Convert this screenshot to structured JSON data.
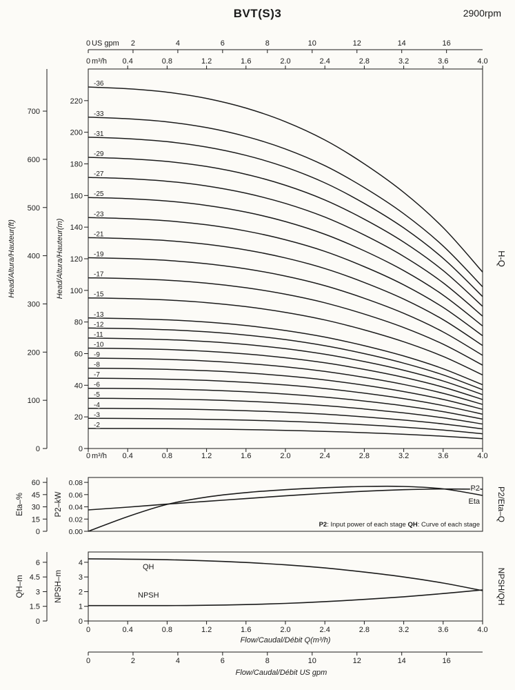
{
  "title": "BVT(S)3",
  "rpm": "2900rpm",
  "chart_data": {
    "type": "line",
    "flow_m3h": [
      0,
      0.4,
      0.8,
      1.2,
      1.6,
      2.0,
      2.4,
      2.8,
      3.2,
      3.6,
      4.0
    ],
    "x_axis_m3h": {
      "unit": "m³/h",
      "zero_label": "0",
      "tick_values": [
        0.4,
        0.8,
        1.2,
        1.6,
        2.0,
        2.4,
        2.8,
        3.2,
        3.6,
        4.0
      ],
      "tick_labels": [
        "0.4",
        "0.8",
        "1.2",
        "1.6",
        "2.0",
        "2.4",
        "2.8",
        "3.2",
        "3.6",
        "4.0"
      ],
      "max": 4.0
    },
    "x_axis_usgpm": {
      "unit": "US gpm",
      "zero_label": "0",
      "tick_values": [
        2,
        4,
        6,
        8,
        10,
        12,
        14,
        16
      ],
      "tick_labels": [
        "2",
        "4",
        "6",
        "8",
        "10",
        "12",
        "14",
        "16"
      ],
      "gpm_per_m3h": 4.4029
    },
    "hq": {
      "right_label": "H-Q",
      "axis_m": {
        "title": "Head/Altura/Hauteur(m)",
        "ticks": [
          0,
          20,
          40,
          60,
          80,
          100,
          120,
          140,
          160,
          180,
          200,
          220
        ],
        "max": 240
      },
      "axis_ft": {
        "title": "Head/Altura/Hauteur(ft)",
        "ticks": [
          0,
          100,
          200,
          300,
          400,
          500,
          600,
          700
        ],
        "m_per_ft": 0.3048
      },
      "per_stage_head_m": [
        6.35,
        6.32,
        6.26,
        6.15,
        5.98,
        5.74,
        5.42,
        5.0,
        4.5,
        3.88,
        3.1
      ],
      "stages": [
        36,
        33,
        31,
        29,
        27,
        25,
        23,
        21,
        19,
        17,
        15,
        13,
        12,
        11,
        10,
        9,
        8,
        7,
        6,
        5,
        4,
        3,
        2
      ],
      "stage_labels": [
        "-36",
        "-33",
        "-31",
        "-29",
        "-27",
        "-25",
        "-23",
        "-21",
        "-19",
        "-17",
        "-15",
        "-13",
        "-12",
        "-11",
        "-10",
        "-9",
        "-8",
        "-7",
        "-6",
        "-5",
        "-4",
        "-3",
        "-2"
      ]
    },
    "p2eta": {
      "right_label": "P2/Eta–Q",
      "axis_eta": {
        "title": "Eta–%",
        "ticks": [
          0,
          15,
          30,
          45,
          60
        ],
        "max": 66
      },
      "axis_p2": {
        "title": "P2–kW",
        "tick_values": [
          0,
          0.02,
          0.04,
          0.06,
          0.08
        ],
        "tick_labels": [
          "0.00",
          "0.02",
          "0.04",
          "0.06",
          "0.08"
        ],
        "max": 0.088
      },
      "p2_kw": [
        0.035,
        0.0395,
        0.0445,
        0.049,
        0.0535,
        0.058,
        0.062,
        0.0655,
        0.068,
        0.0692,
        0.0688
      ],
      "eta_pct": [
        0,
        18,
        33,
        42,
        47.5,
        51,
        53.5,
        55,
        55,
        52,
        44
      ],
      "p2_label": "P2",
      "eta_label": "Eta",
      "note": [
        {
          "text": "P2",
          "bold": true
        },
        {
          "text": ": Input power of each stage ",
          "bold": false
        },
        {
          "text": "QH",
          "bold": true
        },
        {
          "text": ": Curve of each stage",
          "bold": false
        }
      ]
    },
    "npshqh": {
      "right_label": "NPSH/QH",
      "axis_qh": {
        "title": "QH–m",
        "tick_values": [
          0,
          1.5,
          3,
          4.5,
          6
        ],
        "tick_labels": [
          "0",
          "1.5",
          "3",
          "4.5",
          "6"
        ],
        "max": 7.05
      },
      "axis_npsh": {
        "title": "NPSH–m",
        "ticks": [
          0,
          1,
          2,
          3,
          4
        ],
        "max": 4.7
      },
      "qh_m": [
        6.35,
        6.32,
        6.26,
        6.15,
        5.98,
        5.74,
        5.42,
        5.0,
        4.5,
        3.88,
        3.1
      ],
      "npsh_m": [
        1.05,
        1.05,
        1.05,
        1.07,
        1.12,
        1.2,
        1.32,
        1.47,
        1.65,
        1.87,
        2.12
      ],
      "qh_label": "QH",
      "npsh_label": "NPSH",
      "x_title": "Flow/Caudal/Débit Q(m³/h)"
    },
    "bottom_axis_title": "Flow/Caudal/Débit  US gpm"
  }
}
